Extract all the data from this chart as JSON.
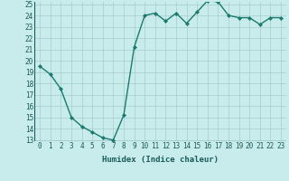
{
  "x": [
    0,
    1,
    2,
    3,
    4,
    5,
    6,
    7,
    8,
    9,
    10,
    11,
    12,
    13,
    14,
    15,
    16,
    17,
    18,
    19,
    20,
    21,
    22,
    23
  ],
  "y": [
    19.5,
    18.8,
    17.5,
    15.0,
    14.2,
    13.7,
    13.2,
    13.0,
    15.2,
    21.2,
    24.0,
    24.2,
    23.5,
    24.2,
    23.3,
    24.3,
    25.3,
    25.2,
    24.0,
    23.8,
    23.8,
    23.2,
    23.8,
    23.8
  ],
  "xlabel": "Humidex (Indice chaleur)",
  "ylim": [
    13,
    25
  ],
  "xlim": [
    -0.5,
    23.5
  ],
  "yticks": [
    13,
    14,
    15,
    16,
    17,
    18,
    19,
    20,
    21,
    22,
    23,
    24,
    25
  ],
  "xticks": [
    0,
    1,
    2,
    3,
    4,
    5,
    6,
    7,
    8,
    9,
    10,
    11,
    12,
    13,
    14,
    15,
    16,
    17,
    18,
    19,
    20,
    21,
    22,
    23
  ],
  "line_color": "#1a7a6e",
  "marker": "D",
  "marker_size": 2.0,
  "bg_color": "#c8ecec",
  "grid_color": "#a8cccc",
  "font_color": "#1a5a5a",
  "xlabel_fontsize": 6.5,
  "tick_fontsize": 5.5,
  "line_width": 1.0
}
